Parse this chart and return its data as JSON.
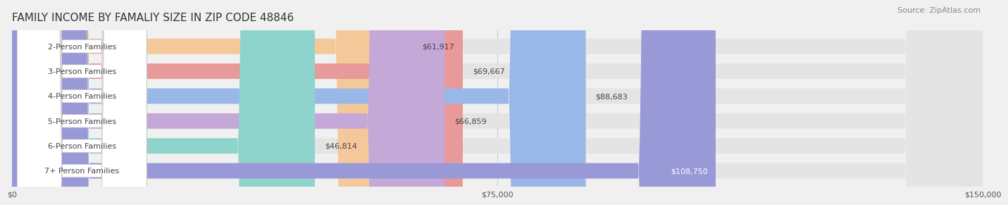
{
  "title": "FAMILY INCOME BY FAMALIY SIZE IN ZIP CODE 48846",
  "source": "Source: ZipAtlas.com",
  "categories": [
    "2-Person Families",
    "3-Person Families",
    "4-Person Families",
    "5-Person Families",
    "6-Person Families",
    "7+ Person Families"
  ],
  "values": [
    61917,
    69667,
    88683,
    66859,
    46814,
    108750
  ],
  "bar_colors": [
    "#f5c89a",
    "#e89999",
    "#99b8e8",
    "#c4a8d8",
    "#8fd4cc",
    "#9999d8"
  ],
  "value_labels": [
    "$61,917",
    "$69,667",
    "$88,683",
    "$66,859",
    "$46,814",
    "$108,750"
  ],
  "value_label_inside": [
    false,
    false,
    false,
    false,
    false,
    true
  ],
  "xlim": [
    0,
    150000
  ],
  "xticks": [
    0,
    75000,
    150000
  ],
  "xtick_labels": [
    "$0",
    "$75,000",
    "$150,000"
  ],
  "bar_height": 0.62,
  "background_color": "#f0f0f0",
  "bar_background_color": "#e4e4e4",
  "title_fontsize": 11,
  "source_fontsize": 8,
  "label_fontsize": 8,
  "value_fontsize": 8
}
